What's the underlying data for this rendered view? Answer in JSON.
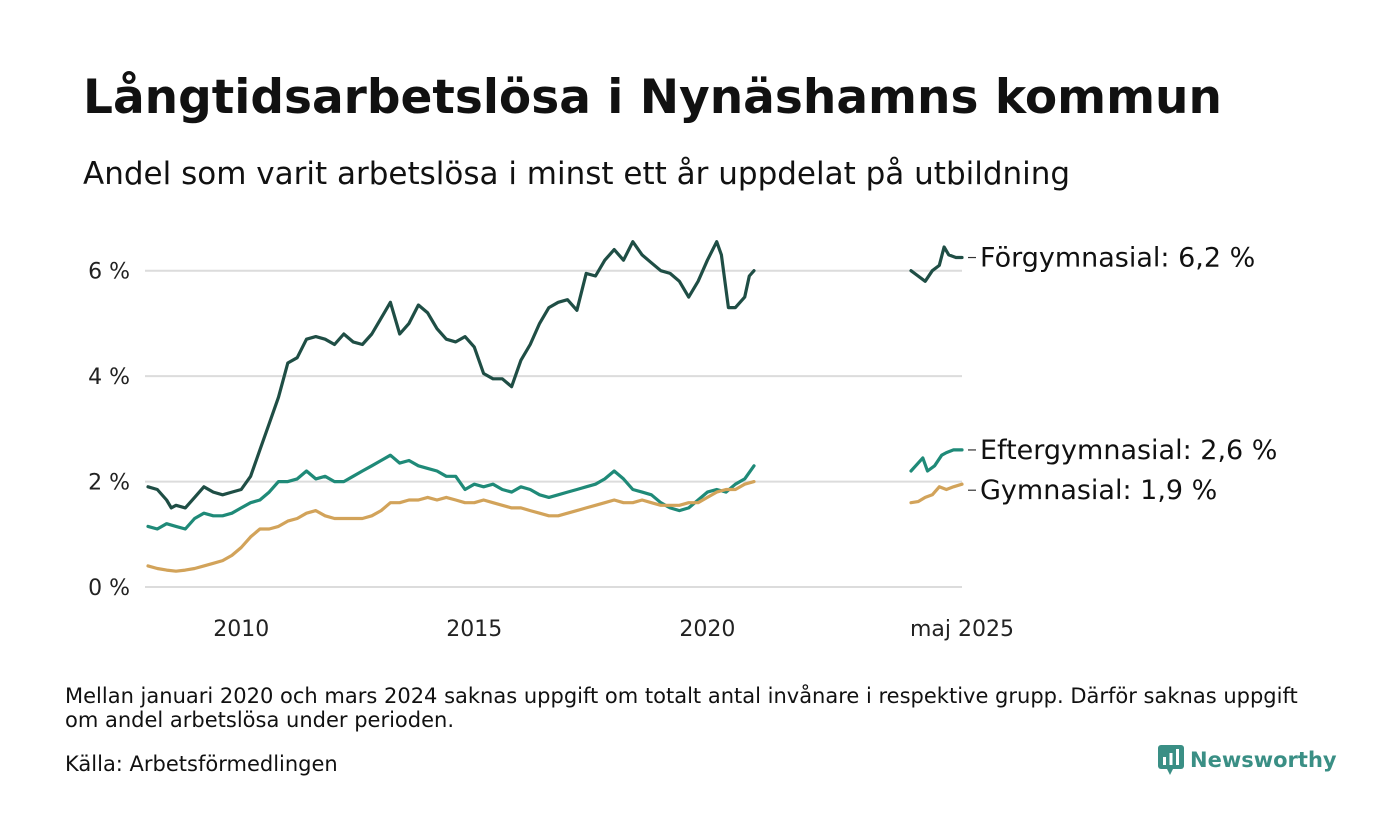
{
  "title": "Långtidsarbetslösa i Nynäshamns kommun",
  "subtitle": "Andel som varit arbetslösa i minst ett år uppdelat på utbildning",
  "note": "Mellan januari 2020 och mars 2024 saknas uppgift om totalt antal invånare i respektive grupp. Därför saknas uppgift om andel arbetslösa under perioden.",
  "source": "Källa: Arbetsförmedlingen",
  "brand": "Newsworthy",
  "chart_data": {
    "type": "line",
    "xlabel": "",
    "ylabel": "",
    "ylim": [
      0,
      7
    ],
    "y_ticks": [
      {
        "v": 0,
        "label": "0 %"
      },
      {
        "v": 2,
        "label": "2 %"
      },
      {
        "v": 4,
        "label": "4 %"
      },
      {
        "v": 6,
        "label": "6 %"
      }
    ],
    "x_ticks": [
      {
        "v": 2010,
        "label": "2010"
      },
      {
        "v": 2015,
        "label": "2015"
      },
      {
        "v": 2020,
        "label": "2020"
      }
    ],
    "grid": "horizontal",
    "segments": [
      {
        "x_start": 2008.0,
        "x_end": 2021.0,
        "axis_range": [
          2008.0,
          2021.0
        ]
      },
      {
        "x_start": 2024.25,
        "x_end": 2025.33,
        "axis_range": [
          2024.25,
          2025.33
        ],
        "tick_label": "maj 2025"
      }
    ],
    "series": [
      {
        "name": "Förgymnasial",
        "end_label": "Förgymnasial: 6,2 %",
        "color": "#1f4e45",
        "points": [
          [
            2008.0,
            1.9
          ],
          [
            2008.2,
            1.85
          ],
          [
            2008.4,
            1.65
          ],
          [
            2008.5,
            1.5
          ],
          [
            2008.6,
            1.55
          ],
          [
            2008.8,
            1.5
          ],
          [
            2009.0,
            1.7
          ],
          [
            2009.2,
            1.9
          ],
          [
            2009.4,
            1.8
          ],
          [
            2009.6,
            1.75
          ],
          [
            2009.8,
            1.8
          ],
          [
            2010.0,
            1.85
          ],
          [
            2010.2,
            2.1
          ],
          [
            2010.4,
            2.6
          ],
          [
            2010.6,
            3.1
          ],
          [
            2010.8,
            3.6
          ],
          [
            2011.0,
            4.25
          ],
          [
            2011.2,
            4.35
          ],
          [
            2011.4,
            4.7
          ],
          [
            2011.6,
            4.75
          ],
          [
            2011.8,
            4.7
          ],
          [
            2012.0,
            4.6
          ],
          [
            2012.2,
            4.8
          ],
          [
            2012.4,
            4.65
          ],
          [
            2012.6,
            4.6
          ],
          [
            2012.8,
            4.8
          ],
          [
            2013.0,
            5.1
          ],
          [
            2013.2,
            5.4
          ],
          [
            2013.4,
            4.8
          ],
          [
            2013.6,
            5.0
          ],
          [
            2013.8,
            5.35
          ],
          [
            2014.0,
            5.2
          ],
          [
            2014.2,
            4.9
          ],
          [
            2014.4,
            4.7
          ],
          [
            2014.6,
            4.65
          ],
          [
            2014.8,
            4.75
          ],
          [
            2015.0,
            4.55
          ],
          [
            2015.2,
            4.05
          ],
          [
            2015.4,
            3.95
          ],
          [
            2015.6,
            3.95
          ],
          [
            2015.8,
            3.8
          ],
          [
            2016.0,
            4.3
          ],
          [
            2016.2,
            4.6
          ],
          [
            2016.4,
            5.0
          ],
          [
            2016.6,
            5.3
          ],
          [
            2016.8,
            5.4
          ],
          [
            2017.0,
            5.45
          ],
          [
            2017.2,
            5.25
          ],
          [
            2017.4,
            5.95
          ],
          [
            2017.6,
            5.9
          ],
          [
            2017.8,
            6.2
          ],
          [
            2018.0,
            6.4
          ],
          [
            2018.2,
            6.2
          ],
          [
            2018.4,
            6.55
          ],
          [
            2018.6,
            6.3
          ],
          [
            2018.8,
            6.15
          ],
          [
            2019.0,
            6.0
          ],
          [
            2019.2,
            5.95
          ],
          [
            2019.4,
            5.8
          ],
          [
            2019.6,
            5.5
          ],
          [
            2019.8,
            5.8
          ],
          [
            2020.0,
            6.2
          ],
          [
            2020.2,
            6.55
          ],
          [
            2020.3,
            6.3
          ],
          [
            2020.45,
            5.3
          ],
          [
            2020.6,
            5.3
          ],
          [
            2020.8,
            5.5
          ],
          [
            2020.9,
            5.9
          ],
          [
            2021.0,
            6.0
          ],
          [
            2024.25,
            6.0
          ],
          [
            2024.4,
            5.9
          ],
          [
            2024.55,
            5.8
          ],
          [
            2024.7,
            6.0
          ],
          [
            2024.85,
            6.1
          ],
          [
            2024.95,
            6.45
          ],
          [
            2025.05,
            6.3
          ],
          [
            2025.2,
            6.25
          ],
          [
            2025.33,
            6.25
          ]
        ]
      },
      {
        "name": "Eftergymnasial",
        "end_label": "Eftergymnasial: 2,6 %",
        "color": "#1f8a78",
        "points": [
          [
            2008.0,
            1.15
          ],
          [
            2008.2,
            1.1
          ],
          [
            2008.4,
            1.2
          ],
          [
            2008.6,
            1.15
          ],
          [
            2008.8,
            1.1
          ],
          [
            2009.0,
            1.3
          ],
          [
            2009.2,
            1.4
          ],
          [
            2009.4,
            1.35
          ],
          [
            2009.6,
            1.35
          ],
          [
            2009.8,
            1.4
          ],
          [
            2010.0,
            1.5
          ],
          [
            2010.2,
            1.6
          ],
          [
            2010.4,
            1.65
          ],
          [
            2010.6,
            1.8
          ],
          [
            2010.8,
            2.0
          ],
          [
            2011.0,
            2.0
          ],
          [
            2011.2,
            2.05
          ],
          [
            2011.4,
            2.2
          ],
          [
            2011.6,
            2.05
          ],
          [
            2011.8,
            2.1
          ],
          [
            2012.0,
            2.0
          ],
          [
            2012.2,
            2.0
          ],
          [
            2012.4,
            2.1
          ],
          [
            2012.6,
            2.2
          ],
          [
            2012.8,
            2.3
          ],
          [
            2013.0,
            2.4
          ],
          [
            2013.2,
            2.5
          ],
          [
            2013.4,
            2.35
          ],
          [
            2013.6,
            2.4
          ],
          [
            2013.8,
            2.3
          ],
          [
            2014.0,
            2.25
          ],
          [
            2014.2,
            2.2
          ],
          [
            2014.4,
            2.1
          ],
          [
            2014.6,
            2.1
          ],
          [
            2014.8,
            1.85
          ],
          [
            2015.0,
            1.95
          ],
          [
            2015.2,
            1.9
          ],
          [
            2015.4,
            1.95
          ],
          [
            2015.6,
            1.85
          ],
          [
            2015.8,
            1.8
          ],
          [
            2016.0,
            1.9
          ],
          [
            2016.2,
            1.85
          ],
          [
            2016.4,
            1.75
          ],
          [
            2016.6,
            1.7
          ],
          [
            2016.8,
            1.75
          ],
          [
            2017.0,
            1.8
          ],
          [
            2017.2,
            1.85
          ],
          [
            2017.4,
            1.9
          ],
          [
            2017.6,
            1.95
          ],
          [
            2017.8,
            2.05
          ],
          [
            2018.0,
            2.2
          ],
          [
            2018.2,
            2.05
          ],
          [
            2018.4,
            1.85
          ],
          [
            2018.6,
            1.8
          ],
          [
            2018.8,
            1.75
          ],
          [
            2019.0,
            1.6
          ],
          [
            2019.2,
            1.5
          ],
          [
            2019.4,
            1.45
          ],
          [
            2019.6,
            1.5
          ],
          [
            2019.8,
            1.65
          ],
          [
            2020.0,
            1.8
          ],
          [
            2020.2,
            1.85
          ],
          [
            2020.4,
            1.8
          ],
          [
            2020.6,
            1.95
          ],
          [
            2020.8,
            2.05
          ],
          [
            2021.0,
            2.3
          ],
          [
            2024.25,
            2.2
          ],
          [
            2024.35,
            2.3
          ],
          [
            2024.5,
            2.45
          ],
          [
            2024.6,
            2.2
          ],
          [
            2024.75,
            2.3
          ],
          [
            2024.9,
            2.5
          ],
          [
            2025.0,
            2.55
          ],
          [
            2025.15,
            2.6
          ],
          [
            2025.33,
            2.6
          ]
        ]
      },
      {
        "name": "Gymnasial",
        "end_label": "Gymnasial: 1,9 %",
        "color": "#d2a35a",
        "points": [
          [
            2008.0,
            0.4
          ],
          [
            2008.2,
            0.35
          ],
          [
            2008.4,
            0.32
          ],
          [
            2008.6,
            0.3
          ],
          [
            2008.8,
            0.32
          ],
          [
            2009.0,
            0.35
          ],
          [
            2009.2,
            0.4
          ],
          [
            2009.4,
            0.45
          ],
          [
            2009.6,
            0.5
          ],
          [
            2009.8,
            0.6
          ],
          [
            2010.0,
            0.75
          ],
          [
            2010.2,
            0.95
          ],
          [
            2010.4,
            1.1
          ],
          [
            2010.6,
            1.1
          ],
          [
            2010.8,
            1.15
          ],
          [
            2011.0,
            1.25
          ],
          [
            2011.2,
            1.3
          ],
          [
            2011.4,
            1.4
          ],
          [
            2011.6,
            1.45
          ],
          [
            2011.8,
            1.35
          ],
          [
            2012.0,
            1.3
          ],
          [
            2012.2,
            1.3
          ],
          [
            2012.4,
            1.3
          ],
          [
            2012.6,
            1.3
          ],
          [
            2012.8,
            1.35
          ],
          [
            2013.0,
            1.45
          ],
          [
            2013.2,
            1.6
          ],
          [
            2013.4,
            1.6
          ],
          [
            2013.6,
            1.65
          ],
          [
            2013.8,
            1.65
          ],
          [
            2014.0,
            1.7
          ],
          [
            2014.2,
            1.65
          ],
          [
            2014.4,
            1.7
          ],
          [
            2014.6,
            1.65
          ],
          [
            2014.8,
            1.6
          ],
          [
            2015.0,
            1.6
          ],
          [
            2015.2,
            1.65
          ],
          [
            2015.4,
            1.6
          ],
          [
            2015.6,
            1.55
          ],
          [
            2015.8,
            1.5
          ],
          [
            2016.0,
            1.5
          ],
          [
            2016.2,
            1.45
          ],
          [
            2016.4,
            1.4
          ],
          [
            2016.6,
            1.35
          ],
          [
            2016.8,
            1.35
          ],
          [
            2017.0,
            1.4
          ],
          [
            2017.2,
            1.45
          ],
          [
            2017.4,
            1.5
          ],
          [
            2017.6,
            1.55
          ],
          [
            2017.8,
            1.6
          ],
          [
            2018.0,
            1.65
          ],
          [
            2018.2,
            1.6
          ],
          [
            2018.4,
            1.6
          ],
          [
            2018.6,
            1.65
          ],
          [
            2018.8,
            1.6
          ],
          [
            2019.0,
            1.55
          ],
          [
            2019.2,
            1.55
          ],
          [
            2019.4,
            1.55
          ],
          [
            2019.6,
            1.6
          ],
          [
            2019.8,
            1.6
          ],
          [
            2020.0,
            1.7
          ],
          [
            2020.2,
            1.8
          ],
          [
            2020.4,
            1.85
          ],
          [
            2020.6,
            1.85
          ],
          [
            2020.8,
            1.95
          ],
          [
            2021.0,
            2.0
          ],
          [
            2024.25,
            1.6
          ],
          [
            2024.4,
            1.62
          ],
          [
            2024.55,
            1.7
          ],
          [
            2024.7,
            1.75
          ],
          [
            2024.85,
            1.9
          ],
          [
            2025.0,
            1.85
          ],
          [
            2025.15,
            1.9
          ],
          [
            2025.33,
            1.95
          ]
        ]
      }
    ]
  }
}
